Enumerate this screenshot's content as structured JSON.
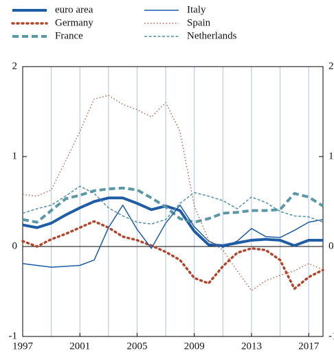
{
  "chart_data": {
    "type": "line",
    "x": [
      1997,
      1998,
      1999,
      2000,
      2001,
      2002,
      2003,
      2004,
      2005,
      2006,
      2007,
      2008,
      2009,
      2010,
      2011,
      2012,
      2013,
      2014,
      2015,
      2016,
      2017,
      2018
    ],
    "xlim": [
      1997,
      2018
    ],
    "xticks": [
      1997,
      2001,
      2005,
      2009,
      2013,
      2017
    ],
    "x_gridlines": [
      1999,
      2001,
      2003,
      2005,
      2007,
      2009,
      2011,
      2013,
      2015,
      2017
    ],
    "ylim": [
      -1,
      2
    ],
    "yticks": [
      -1,
      0,
      1,
      2
    ],
    "grid": true,
    "series": [
      {
        "name": "euro area",
        "color": "#1f5ca6",
        "line_width": 4,
        "line_style": "solid",
        "values": [
          0.24,
          0.21,
          0.26,
          0.35,
          0.43,
          0.5,
          0.54,
          0.54,
          0.48,
          0.41,
          0.45,
          0.4,
          0.17,
          0.02,
          0.01,
          0.04,
          0.07,
          0.08,
          0.07,
          0.01,
          0.07,
          0.07
        ]
      },
      {
        "name": "Germany",
        "color": "#b5452a",
        "line_width": 3.5,
        "line_style": "dot",
        "values": [
          0.06,
          0.0,
          0.08,
          0.14,
          0.21,
          0.28,
          0.21,
          0.11,
          0.07,
          0.01,
          -0.06,
          -0.15,
          -0.35,
          -0.41,
          -0.22,
          -0.07,
          -0.02,
          -0.04,
          -0.15,
          -0.47,
          -0.34,
          -0.26
        ]
      },
      {
        "name": "France",
        "color": "#5b98a6",
        "line_width": 4,
        "line_style": "dash",
        "values": [
          0.3,
          0.27,
          0.4,
          0.53,
          0.57,
          0.62,
          0.64,
          0.65,
          0.63,
          0.54,
          0.44,
          0.31,
          0.27,
          0.31,
          0.37,
          0.38,
          0.4,
          0.4,
          0.41,
          0.59,
          0.55,
          0.45
        ]
      },
      {
        "name": "Italy",
        "color": "#1a5aa5",
        "line_width": 1.5,
        "line_style": "solid",
        "values": [
          -0.19,
          -0.21,
          -0.23,
          -0.22,
          -0.21,
          -0.15,
          0.21,
          0.46,
          0.19,
          -0.02,
          0.26,
          0.46,
          0.22,
          0.06,
          -0.01,
          0.06,
          0.2,
          0.11,
          0.1,
          0.18,
          0.27,
          0.3
        ]
      },
      {
        "name": "Spain",
        "color": "#c0614a",
        "line_width": 1.5,
        "line_style": "dot",
        "values": [
          0.58,
          0.56,
          0.63,
          0.95,
          1.28,
          1.64,
          1.68,
          1.58,
          1.52,
          1.44,
          1.6,
          1.28,
          0.45,
          0.07,
          -0.04,
          -0.27,
          -0.49,
          -0.38,
          -0.32,
          -0.27,
          -0.19,
          -0.26
        ]
      },
      {
        "name": "Netherlands",
        "color": "#4f8fa8",
        "line_width": 1.5,
        "line_style": "dash",
        "values": [
          0.37,
          0.42,
          0.46,
          0.56,
          0.67,
          0.59,
          0.43,
          0.34,
          0.27,
          0.25,
          0.3,
          0.48,
          0.6,
          0.56,
          0.51,
          0.42,
          0.55,
          0.49,
          0.39,
          0.34,
          0.33,
          0.27
        ]
      }
    ]
  }
}
